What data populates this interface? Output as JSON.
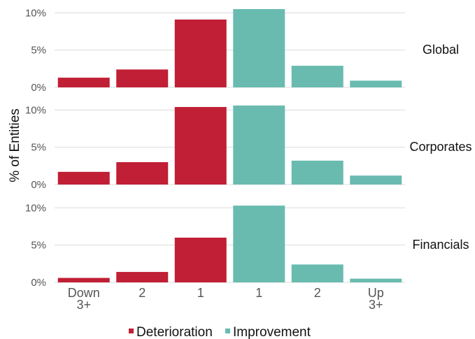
{
  "chart_data": {
    "type": "bar",
    "ylabel": "% of Entities",
    "categories": [
      [
        "Down",
        "3+"
      ],
      [
        "2"
      ],
      [
        "1"
      ],
      [
        "1"
      ],
      [
        "2"
      ],
      [
        "Up",
        "3+"
      ]
    ],
    "category_groups": [
      "Deterioration",
      "Deterioration",
      "Deterioration",
      "Improvement",
      "Improvement",
      "Improvement"
    ],
    "yticks": [
      "0%",
      "5%",
      "10%"
    ],
    "ylim": [
      0,
      10.5
    ],
    "legend": {
      "position": "bottom",
      "entries": [
        {
          "name": "Deterioration",
          "color": "#c01f35"
        },
        {
          "name": "Improvement",
          "color": "#69bbb0"
        }
      ]
    },
    "grid": true,
    "facets": [
      {
        "name": "Global",
        "values": [
          1.3,
          2.4,
          9.1,
          10.5,
          2.9,
          0.9
        ]
      },
      {
        "name": "Corporates",
        "values": [
          1.7,
          3.0,
          10.4,
          10.6,
          3.2,
          1.2
        ]
      },
      {
        "name": "Financials",
        "values": [
          0.6,
          1.4,
          6.0,
          10.3,
          2.4,
          0.5
        ]
      }
    ]
  }
}
